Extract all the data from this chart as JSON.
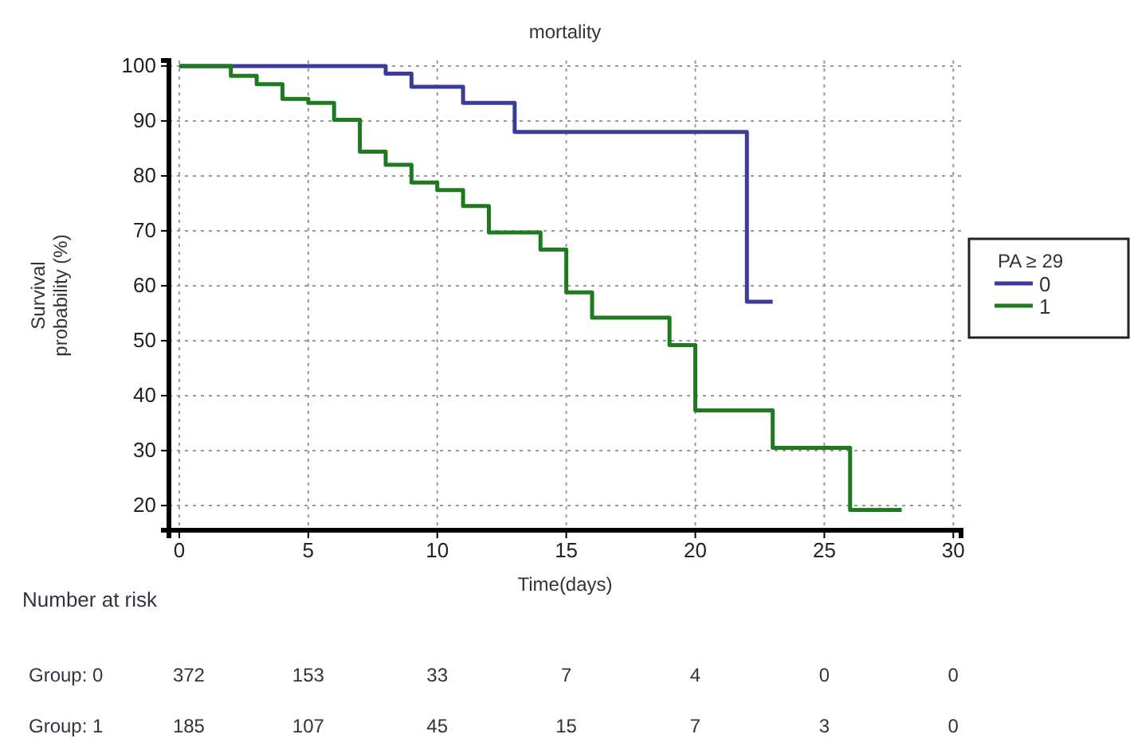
{
  "chart_data": {
    "type": "step",
    "title": "mortality",
    "xlabel": "Time(days)",
    "ylabel": "Survival probability (%)",
    "legend_title": "PA ≥ 29",
    "legend": "right",
    "grid": true,
    "line_style": "solid",
    "marker": "none",
    "xlim": [
      -0.4,
      30.3
    ],
    "xticks": [
      0,
      5,
      10,
      15,
      20,
      25,
      30
    ],
    "ylim": [
      15.5,
      101
    ],
    "yticks": [
      20,
      30,
      40,
      50,
      60,
      70,
      80,
      90,
      100
    ],
    "series": [
      {
        "name": "0",
        "color": "#3b3b98",
        "x": [
          0,
          8,
          9,
          11,
          13,
          22,
          23
        ],
        "values": [
          100,
          98.6,
          96.2,
          93.3,
          88.0,
          57.1,
          57.1
        ]
      },
      {
        "name": "1",
        "color": "#1f7a1f",
        "x": [
          0,
          2,
          3,
          4,
          5,
          6,
          7,
          8,
          9,
          10,
          11,
          12,
          14,
          15,
          16,
          19,
          20,
          23,
          26,
          28
        ],
        "values": [
          100,
          98.2,
          96.7,
          94.0,
          93.3,
          90.2,
          84.4,
          82.0,
          78.8,
          77.4,
          74.5,
          69.7,
          66.6,
          58.8,
          54.2,
          49.2,
          37.3,
          30.5,
          19.2,
          19.2
        ]
      }
    ],
    "annotations": [
      "Number at risk",
      "Group: 0",
      "372",
      "153",
      "33",
      "7",
      "4",
      "0",
      "0",
      "Group: 1",
      "185",
      "107",
      "45",
      "15",
      "7",
      "3",
      "0"
    ]
  }
}
